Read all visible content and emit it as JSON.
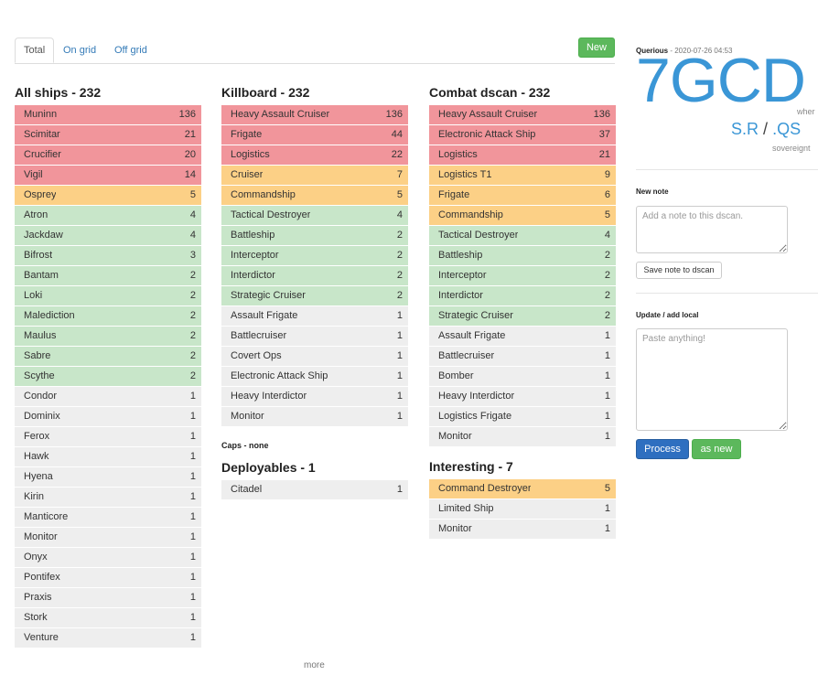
{
  "tabs": {
    "total": "Total",
    "on_grid": "On grid",
    "off_grid": "Off grid"
  },
  "new_button": "New",
  "all_ships": {
    "title": "All ships - 232",
    "rows": [
      {
        "name": "Muninn",
        "count": "136",
        "color": "red"
      },
      {
        "name": "Scimitar",
        "count": "21",
        "color": "red"
      },
      {
        "name": "Crucifier",
        "count": "20",
        "color": "red"
      },
      {
        "name": "Vigil",
        "count": "14",
        "color": "red"
      },
      {
        "name": "Osprey",
        "count": "5",
        "color": "orange"
      },
      {
        "name": "Atron",
        "count": "4",
        "color": "green"
      },
      {
        "name": "Jackdaw",
        "count": "4",
        "color": "green"
      },
      {
        "name": "Bifrost",
        "count": "3",
        "color": "green"
      },
      {
        "name": "Bantam",
        "count": "2",
        "color": "green"
      },
      {
        "name": "Loki",
        "count": "2",
        "color": "green"
      },
      {
        "name": "Malediction",
        "count": "2",
        "color": "green"
      },
      {
        "name": "Maulus",
        "count": "2",
        "color": "green"
      },
      {
        "name": "Sabre",
        "count": "2",
        "color": "green"
      },
      {
        "name": "Scythe",
        "count": "2",
        "color": "green"
      },
      {
        "name": "Condor",
        "count": "1",
        "color": "grey"
      },
      {
        "name": "Dominix",
        "count": "1",
        "color": "grey"
      },
      {
        "name": "Ferox",
        "count": "1",
        "color": "grey"
      },
      {
        "name": "Hawk",
        "count": "1",
        "color": "grey"
      },
      {
        "name": "Hyena",
        "count": "1",
        "color": "grey"
      },
      {
        "name": "Kirin",
        "count": "1",
        "color": "grey"
      },
      {
        "name": "Manticore",
        "count": "1",
        "color": "grey"
      },
      {
        "name": "Monitor",
        "count": "1",
        "color": "grey"
      },
      {
        "name": "Onyx",
        "count": "1",
        "color": "grey"
      },
      {
        "name": "Pontifex",
        "count": "1",
        "color": "grey"
      },
      {
        "name": "Praxis",
        "count": "1",
        "color": "grey"
      },
      {
        "name": "Stork",
        "count": "1",
        "color": "grey"
      },
      {
        "name": "Venture",
        "count": "1",
        "color": "grey"
      }
    ]
  },
  "killboard": {
    "title": "Killboard - 232",
    "rows": [
      {
        "name": "Heavy Assault Cruiser",
        "count": "136",
        "color": "red"
      },
      {
        "name": "Frigate",
        "count": "44",
        "color": "red"
      },
      {
        "name": "Logistics",
        "count": "22",
        "color": "red"
      },
      {
        "name": "Cruiser",
        "count": "7",
        "color": "orange"
      },
      {
        "name": "Commandship",
        "count": "5",
        "color": "orange"
      },
      {
        "name": "Tactical Destroyer",
        "count": "4",
        "color": "green"
      },
      {
        "name": "Battleship",
        "count": "2",
        "color": "green"
      },
      {
        "name": "Interceptor",
        "count": "2",
        "color": "green"
      },
      {
        "name": "Interdictor",
        "count": "2",
        "color": "green"
      },
      {
        "name": "Strategic Cruiser",
        "count": "2",
        "color": "green"
      },
      {
        "name": "Assault Frigate",
        "count": "1",
        "color": "grey"
      },
      {
        "name": "Battlecruiser",
        "count": "1",
        "color": "grey"
      },
      {
        "name": "Covert Ops",
        "count": "1",
        "color": "grey"
      },
      {
        "name": "Electronic Attack Ship",
        "count": "1",
        "color": "grey"
      },
      {
        "name": "Heavy Interdictor",
        "count": "1",
        "color": "grey"
      },
      {
        "name": "Monitor",
        "count": "1",
        "color": "grey"
      }
    ]
  },
  "caps": "Caps - none",
  "deployables": {
    "title": "Deployables - 1",
    "rows": [
      {
        "name": "Citadel",
        "count": "1",
        "color": "grey"
      }
    ]
  },
  "combat": {
    "title": "Combat dscan - 232",
    "rows": [
      {
        "name": "Heavy Assault Cruiser",
        "count": "136",
        "color": "red"
      },
      {
        "name": "Electronic Attack Ship",
        "count": "37",
        "color": "red"
      },
      {
        "name": "Logistics",
        "count": "21",
        "color": "red"
      },
      {
        "name": "Logistics T1",
        "count": "9",
        "color": "orange"
      },
      {
        "name": "Frigate",
        "count": "6",
        "color": "orange"
      },
      {
        "name": "Commandship",
        "count": "5",
        "color": "orange"
      },
      {
        "name": "Tactical Destroyer",
        "count": "4",
        "color": "green"
      },
      {
        "name": "Battleship",
        "count": "2",
        "color": "green"
      },
      {
        "name": "Interceptor",
        "count": "2",
        "color": "green"
      },
      {
        "name": "Interdictor",
        "count": "2",
        "color": "green"
      },
      {
        "name": "Strategic Cruiser",
        "count": "2",
        "color": "green"
      },
      {
        "name": "Assault Frigate",
        "count": "1",
        "color": "grey"
      },
      {
        "name": "Battlecruiser",
        "count": "1",
        "color": "grey"
      },
      {
        "name": "Bomber",
        "count": "1",
        "color": "grey"
      },
      {
        "name": "Heavy Interdictor",
        "count": "1",
        "color": "grey"
      },
      {
        "name": "Logistics Frigate",
        "count": "1",
        "color": "grey"
      },
      {
        "name": "Monitor",
        "count": "1",
        "color": "grey"
      }
    ]
  },
  "interesting": {
    "title": "Interesting - 7",
    "rows": [
      {
        "name": "Command Destroyer",
        "count": "5",
        "color": "orange"
      },
      {
        "name": "Limited Ship",
        "count": "1",
        "color": "grey"
      },
      {
        "name": "Monitor",
        "count": "1",
        "color": "grey"
      }
    ]
  },
  "more": "more",
  "side": {
    "user": "Querious",
    "timestamp": " - 2020-07-26 04:53",
    "system": "7GCD",
    "wher": "wher",
    "region_a": "S.R",
    "slash": "/",
    "region_b": ".QS",
    "sovereignty": "sovereignt",
    "new_note_label": "New note",
    "note_placeholder": "Add a note to this dscan.",
    "save_note": "Save note to dscan",
    "update_label": "Update / add local",
    "paste_placeholder": "Paste anything!",
    "process": "Process",
    "as_new": "as new"
  },
  "colors": {
    "red": "#f1959b",
    "orange": "#fcd086",
    "green": "#c8e6c9",
    "grey": "#eeeeee",
    "accent": "#3a96d6"
  }
}
